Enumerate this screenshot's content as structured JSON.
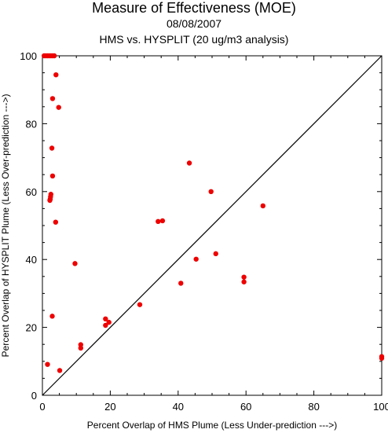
{
  "chart_data": {
    "type": "scatter",
    "title": "Measure of Effectiveness (MOE)",
    "date": "08/08/2007",
    "subtitle": "HMS vs. HYSPLIT  (20 ug/m3 analysis)",
    "xlabel": "Percent Overlap of HMS Plume (Less Under-prediction --->)",
    "ylabel": "Percent Overlap of HYSPLIT Plume (Less Over-prediction --->)",
    "xlim": [
      0,
      100
    ],
    "ylim": [
      0,
      100
    ],
    "xticks": [
      0,
      20,
      40,
      60,
      80,
      100
    ],
    "yticks": [
      0,
      20,
      40,
      60,
      80,
      100
    ],
    "grid": false,
    "reference_line": {
      "from": [
        0,
        0
      ],
      "to": [
        100,
        100
      ]
    },
    "point_color": "#ee0000",
    "points": [
      {
        "x": 0.5,
        "y": 100
      },
      {
        "x": 1.0,
        "y": 100
      },
      {
        "x": 1.5,
        "y": 100
      },
      {
        "x": 2.0,
        "y": 100
      },
      {
        "x": 2.5,
        "y": 100
      },
      {
        "x": 3.0,
        "y": 100
      },
      {
        "x": 3.5,
        "y": 100
      },
      {
        "x": 4.0,
        "y": 94.4
      },
      {
        "x": 3.0,
        "y": 87.4
      },
      {
        "x": 4.8,
        "y": 84.8
      },
      {
        "x": 2.8,
        "y": 72.8
      },
      {
        "x": 3.0,
        "y": 64.6
      },
      {
        "x": 2.5,
        "y": 59.2
      },
      {
        "x": 2.4,
        "y": 58.5
      },
      {
        "x": 2.3,
        "y": 57.8
      },
      {
        "x": 2.2,
        "y": 57.4
      },
      {
        "x": 3.9,
        "y": 51.0
      },
      {
        "x": 9.6,
        "y": 38.8
      },
      {
        "x": 2.9,
        "y": 23.3
      },
      {
        "x": 11.3,
        "y": 14.9
      },
      {
        "x": 11.3,
        "y": 13.9
      },
      {
        "x": 1.5,
        "y": 9.1
      },
      {
        "x": 5.1,
        "y": 7.3
      },
      {
        "x": 18.6,
        "y": 22.5
      },
      {
        "x": 19.6,
        "y": 21.5
      },
      {
        "x": 18.6,
        "y": 20.6
      },
      {
        "x": 28.7,
        "y": 26.7
      },
      {
        "x": 34.1,
        "y": 51.2
      },
      {
        "x": 35.4,
        "y": 51.4
      },
      {
        "x": 43.3,
        "y": 68.4
      },
      {
        "x": 49.7,
        "y": 60.0
      },
      {
        "x": 65.0,
        "y": 55.8
      },
      {
        "x": 45.3,
        "y": 40.1
      },
      {
        "x": 51.1,
        "y": 41.7
      },
      {
        "x": 40.8,
        "y": 33.0
      },
      {
        "x": 59.4,
        "y": 34.8
      },
      {
        "x": 59.4,
        "y": 33.4
      },
      {
        "x": 100,
        "y": 11.4
      },
      {
        "x": 100,
        "y": 10.9
      }
    ]
  }
}
